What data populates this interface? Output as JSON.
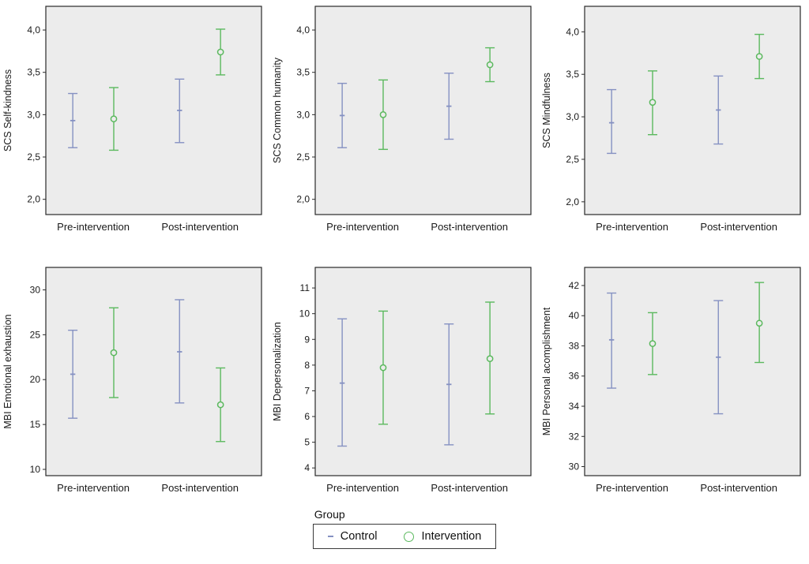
{
  "colors": {
    "plot_bg": "#ececec",
    "frame": "#2a2a2a",
    "text": "#1a1a1a",
    "control": "#8591c2",
    "intervention": "#5bb95e"
  },
  "legend": {
    "title": "Group",
    "entries": [
      {
        "label": "Control",
        "marker": "dash",
        "color": "#8591c2"
      },
      {
        "label": "Intervention",
        "marker": "circle",
        "color": "#5bb95e"
      }
    ]
  },
  "chart_data": [
    {
      "type": "errorbar",
      "ylabel": "SCS Self-kindness",
      "categories": [
        "Pre-intervention",
        "Post-intervention"
      ],
      "ylim": [
        1.82,
        4.28
      ],
      "yticks": [
        2.0,
        2.5,
        3.0,
        3.5,
        4.0
      ],
      "ytick_labels": [
        "2,0",
        "2,5",
        "3,0",
        "3,5",
        "4,0"
      ],
      "series": [
        {
          "name": "Control",
          "means": [
            2.93,
            3.05
          ],
          "lower": [
            2.61,
            2.67
          ],
          "upper": [
            3.25,
            3.42
          ]
        },
        {
          "name": "Intervention",
          "means": [
            2.95,
            3.74
          ],
          "lower": [
            2.58,
            3.47
          ],
          "upper": [
            3.32,
            4.01
          ]
        }
      ]
    },
    {
      "type": "errorbar",
      "ylabel": "SCS Common humanity",
      "categories": [
        "Pre-intervention",
        "Post-intervention"
      ],
      "ylim": [
        1.82,
        4.28
      ],
      "yticks": [
        2.0,
        2.5,
        3.0,
        3.5,
        4.0
      ],
      "ytick_labels": [
        "2,0",
        "2,5",
        "3,0",
        "3,5",
        "4,0"
      ],
      "series": [
        {
          "name": "Control",
          "means": [
            2.99,
            3.1
          ],
          "lower": [
            2.61,
            2.71
          ],
          "upper": [
            3.37,
            3.49
          ]
        },
        {
          "name": "Intervention",
          "means": [
            3.0,
            3.59
          ],
          "lower": [
            2.59,
            3.39
          ],
          "upper": [
            3.41,
            3.79
          ]
        }
      ]
    },
    {
      "type": "errorbar",
      "ylabel": "SCS Mindfulness",
      "categories": [
        "Pre-intervention",
        "Post-intervention"
      ],
      "ylim": [
        1.85,
        4.3
      ],
      "yticks": [
        2.0,
        2.5,
        3.0,
        3.5,
        4.0
      ],
      "ytick_labels": [
        "2,0",
        "2,5",
        "3,0",
        "3,5",
        "4,0"
      ],
      "series": [
        {
          "name": "Control",
          "means": [
            2.93,
            3.08
          ],
          "lower": [
            2.57,
            2.68
          ],
          "upper": [
            3.32,
            3.48
          ]
        },
        {
          "name": "Intervention",
          "means": [
            3.17,
            3.71
          ],
          "lower": [
            2.79,
            3.45
          ],
          "upper": [
            3.54,
            3.97
          ]
        }
      ]
    },
    {
      "type": "errorbar",
      "ylabel": "MBI Emotional exhaustion",
      "categories": [
        "Pre-intervention",
        "Post-intervention"
      ],
      "ylim": [
        9.3,
        32.5
      ],
      "yticks": [
        10,
        15,
        20,
        25,
        30
      ],
      "ytick_labels": [
        "10",
        "15",
        "20",
        "25",
        "30"
      ],
      "series": [
        {
          "name": "Control",
          "means": [
            20.6,
            23.1
          ],
          "lower": [
            15.7,
            17.4
          ],
          "upper": [
            25.5,
            28.9
          ]
        },
        {
          "name": "Intervention",
          "means": [
            23.0,
            17.2
          ],
          "lower": [
            18.0,
            13.1
          ],
          "upper": [
            28.0,
            21.3
          ]
        }
      ]
    },
    {
      "type": "errorbar",
      "ylabel": "MBI Depersonalization",
      "categories": [
        "Pre-intervention",
        "Post-intervention"
      ],
      "ylim": [
        3.7,
        11.8
      ],
      "yticks": [
        4,
        5,
        6,
        7,
        8,
        9,
        10,
        11
      ],
      "ytick_labels": [
        "4",
        "5",
        "6",
        "7",
        "8",
        "9",
        "10",
        "11"
      ],
      "series": [
        {
          "name": "Control",
          "means": [
            7.3,
            7.25
          ],
          "lower": [
            4.85,
            4.9
          ],
          "upper": [
            9.8,
            9.6
          ]
        },
        {
          "name": "Intervention",
          "means": [
            7.9,
            8.25
          ],
          "lower": [
            5.7,
            6.1
          ],
          "upper": [
            10.1,
            10.45
          ]
        }
      ]
    },
    {
      "type": "errorbar",
      "ylabel": "MBI Personal acomplishment",
      "categories": [
        "Pre-intervention",
        "Post-intervention"
      ],
      "ylim": [
        29.4,
        43.2
      ],
      "yticks": [
        30,
        32,
        34,
        36,
        38,
        40,
        42
      ],
      "ytick_labels": [
        "30",
        "32",
        "34",
        "36",
        "38",
        "40",
        "42"
      ],
      "series": [
        {
          "name": "Control",
          "means": [
            38.4,
            37.25
          ],
          "lower": [
            35.2,
            33.5
          ],
          "upper": [
            41.5,
            41.0
          ]
        },
        {
          "name": "Intervention",
          "means": [
            38.15,
            39.5
          ],
          "lower": [
            36.1,
            36.9
          ],
          "upper": [
            40.2,
            42.2
          ]
        }
      ]
    }
  ]
}
